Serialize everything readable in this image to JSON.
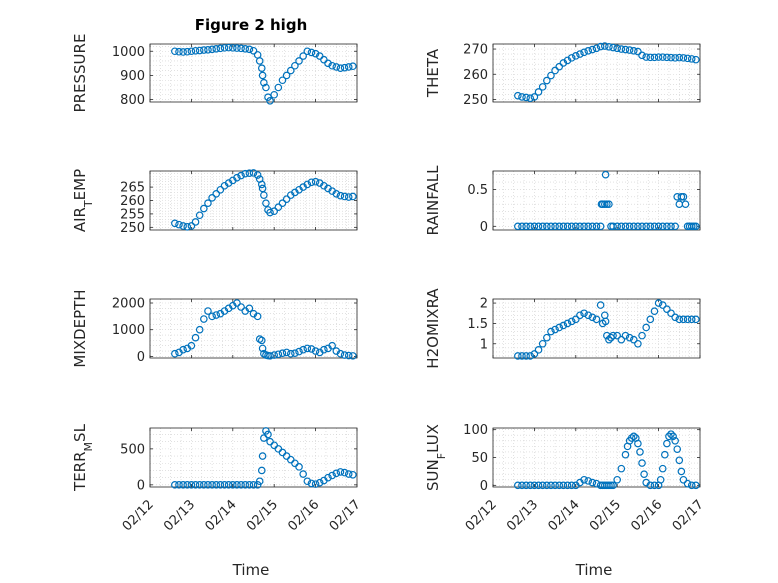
{
  "title": "Figure 2 high",
  "xlabel": "Time",
  "x_tick_labels": [
    "02/12",
    "02/13",
    "02/14",
    "02/15",
    "02/16",
    "02/17"
  ],
  "marker_color": "#0072BD",
  "chart_data": [
    {
      "type": "scatter",
      "ylabel": "PRESSURE",
      "ylim": [
        790,
        1030
      ],
      "yticks": [
        800,
        900,
        1000
      ],
      "x": [
        12.6,
        12.7,
        12.8,
        12.9,
        13.0,
        13.1,
        13.2,
        13.3,
        13.4,
        13.5,
        13.6,
        13.7,
        13.8,
        13.9,
        14.0,
        14.1,
        14.2,
        14.3,
        14.4,
        14.5,
        14.6,
        14.65,
        14.7,
        14.72,
        14.75,
        14.8,
        14.85,
        14.9,
        15.0,
        15.1,
        15.2,
        15.3,
        15.4,
        15.5,
        15.6,
        15.7,
        15.8,
        15.9,
        16.0,
        16.1,
        16.2,
        16.3,
        16.4,
        16.5,
        16.6,
        16.7,
        16.8,
        16.9
      ],
      "y": [
        1000,
        998,
        997,
        998,
        1000,
        1002,
        1003,
        1005,
        1006,
        1008,
        1010,
        1012,
        1014,
        1015,
        1014,
        1013,
        1012,
        1010,
        1008,
        1002,
        985,
        960,
        930,
        900,
        870,
        850,
        810,
        795,
        820,
        850,
        880,
        900,
        920,
        940,
        960,
        980,
        1000,
        995,
        990,
        980,
        965,
        950,
        940,
        935,
        930,
        932,
        935,
        938
      ]
    },
    {
      "type": "scatter",
      "ylabel": "THETA",
      "ylim": [
        249,
        272
      ],
      "yticks": [
        250,
        260,
        270
      ],
      "x": [
        12.6,
        12.7,
        12.8,
        12.9,
        13.0,
        13.1,
        13.2,
        13.3,
        13.4,
        13.5,
        13.6,
        13.7,
        13.8,
        13.9,
        14.0,
        14.1,
        14.2,
        14.3,
        14.4,
        14.5,
        14.6,
        14.7,
        14.8,
        14.9,
        15.0,
        15.1,
        15.2,
        15.3,
        15.4,
        15.5,
        15.6,
        15.7,
        15.8,
        15.9,
        16.0,
        16.1,
        16.2,
        16.3,
        16.4,
        16.5,
        16.6,
        16.7,
        16.8,
        16.9
      ],
      "y": [
        251.5,
        251,
        250.8,
        250.5,
        251,
        253,
        255,
        257.5,
        259.5,
        261.5,
        263,
        264.5,
        265.5,
        266.5,
        267.3,
        268,
        268.7,
        269.3,
        269.8,
        270.3,
        271,
        271.2,
        270.9,
        270.6,
        270.3,
        270,
        269.8,
        269.6,
        269.3,
        269,
        267.5,
        266.8,
        266.7,
        266.7,
        266.8,
        266.8,
        266.7,
        266.6,
        266.5,
        266.6,
        266.5,
        266.3,
        266.1,
        265.8
      ]
    },
    {
      "type": "scatter",
      "ylabel": "AIR_TEMP",
      "ylim": [
        249,
        271
      ],
      "yticks": [
        250,
        255,
        260,
        265
      ],
      "x": [
        12.6,
        12.7,
        12.8,
        12.9,
        13.0,
        13.1,
        13.2,
        13.3,
        13.4,
        13.5,
        13.6,
        13.7,
        13.8,
        13.9,
        14.0,
        14.1,
        14.2,
        14.3,
        14.4,
        14.5,
        14.6,
        14.65,
        14.7,
        14.72,
        14.75,
        14.8,
        14.85,
        14.9,
        15.0,
        15.1,
        15.2,
        15.3,
        15.4,
        15.5,
        15.6,
        15.7,
        15.8,
        15.9,
        16.0,
        16.1,
        16.2,
        16.3,
        16.4,
        16.5,
        16.6,
        16.7,
        16.8,
        16.9
      ],
      "y": [
        251.5,
        251,
        250.5,
        250.2,
        250.5,
        252,
        254.5,
        257,
        259,
        261,
        262.5,
        264,
        265.5,
        266.5,
        267.5,
        268.5,
        269.3,
        270,
        270.2,
        270.3,
        269.5,
        268,
        266,
        264.5,
        262,
        259,
        256.5,
        255.5,
        256,
        257.5,
        259,
        260.5,
        262,
        263,
        264,
        265,
        266,
        266.8,
        267,
        266.5,
        265.5,
        264.5,
        263.5,
        262.5,
        261.8,
        261.5,
        261.3,
        261.5
      ]
    },
    {
      "type": "scatter",
      "ylabel": "RAINFALL",
      "ylim": [
        -0.05,
        0.75
      ],
      "yticks": [
        0,
        0.5
      ],
      "x": [
        12.6,
        12.7,
        12.8,
        12.9,
        13.0,
        13.1,
        13.2,
        13.3,
        13.4,
        13.5,
        13.6,
        13.7,
        13.8,
        13.9,
        14.0,
        14.1,
        14.2,
        14.3,
        14.4,
        14.5,
        14.6,
        14.62,
        14.65,
        14.7,
        14.72,
        14.75,
        14.8,
        14.85,
        14.9,
        15.0,
        15.1,
        15.2,
        15.3,
        15.4,
        15.5,
        15.6,
        15.7,
        15.8,
        15.9,
        16.0,
        16.1,
        16.2,
        16.3,
        16.4,
        16.45,
        16.5,
        16.55,
        16.6,
        16.65,
        16.7,
        16.75,
        16.8,
        16.85,
        16.9
      ],
      "y": [
        0,
        0,
        0,
        0,
        0,
        0,
        0,
        0,
        0,
        0,
        0,
        0,
        0,
        0,
        0,
        0,
        0,
        0,
        0,
        0,
        0,
        0.3,
        0.3,
        0.3,
        0.7,
        0.3,
        0.3,
        0,
        0,
        0,
        0,
        0,
        0,
        0,
        0,
        0,
        0,
        0,
        0,
        0,
        0,
        0,
        0,
        0,
        0.4,
        0.3,
        0.4,
        0.4,
        0.3,
        0,
        0,
        0,
        0,
        0
      ]
    },
    {
      "type": "scatter",
      "ylabel": "MIXDEPTH",
      "ylim": [
        -60,
        2150
      ],
      "yticks": [
        0,
        1000,
        2000
      ],
      "x": [
        12.6,
        12.7,
        12.8,
        12.9,
        13.0,
        13.1,
        13.2,
        13.3,
        13.4,
        13.5,
        13.6,
        13.7,
        13.8,
        13.9,
        14.0,
        14.1,
        14.2,
        14.3,
        14.4,
        14.5,
        14.6,
        14.65,
        14.7,
        14.72,
        14.75,
        14.8,
        14.85,
        14.9,
        15.0,
        15.1,
        15.2,
        15.3,
        15.4,
        15.5,
        15.6,
        15.7,
        15.8,
        15.9,
        16.0,
        16.1,
        16.2,
        16.3,
        16.4,
        16.5,
        16.6,
        16.7,
        16.8,
        16.9
      ],
      "y": [
        100,
        150,
        250,
        300,
        400,
        700,
        1000,
        1400,
        1700,
        1500,
        1550,
        1600,
        1700,
        1800,
        1900,
        2000,
        1850,
        1700,
        1800,
        1600,
        1500,
        650,
        600,
        300,
        100,
        50,
        30,
        20,
        50,
        80,
        120,
        150,
        100,
        120,
        180,
        250,
        300,
        280,
        200,
        150,
        250,
        300,
        400,
        200,
        100,
        50,
        30,
        20
      ]
    },
    {
      "type": "scatter",
      "ylabel": "H2OMIXRA",
      "ylim": [
        0.65,
        2.1
      ],
      "yticks": [
        1,
        1.5,
        2
      ],
      "x": [
        12.6,
        12.7,
        12.8,
        12.9,
        13.0,
        13.1,
        13.2,
        13.3,
        13.4,
        13.5,
        13.6,
        13.7,
        13.8,
        13.9,
        14.0,
        14.1,
        14.2,
        14.3,
        14.4,
        14.5,
        14.6,
        14.65,
        14.7,
        14.72,
        14.75,
        14.8,
        14.85,
        14.9,
        15.0,
        15.1,
        15.2,
        15.3,
        15.4,
        15.5,
        15.6,
        15.7,
        15.8,
        15.9,
        16.0,
        16.1,
        16.2,
        16.3,
        16.4,
        16.5,
        16.6,
        16.7,
        16.8,
        16.9
      ],
      "y": [
        0.7,
        0.7,
        0.7,
        0.7,
        0.75,
        0.85,
        1.0,
        1.15,
        1.3,
        1.35,
        1.4,
        1.45,
        1.5,
        1.55,
        1.6,
        1.7,
        1.75,
        1.7,
        1.65,
        1.6,
        1.95,
        1.5,
        1.7,
        1.55,
        1.2,
        1.1,
        1.15,
        1.2,
        1.2,
        1.1,
        1.2,
        1.15,
        1.1,
        1.0,
        1.2,
        1.4,
        1.6,
        1.8,
        2.0,
        1.95,
        1.85,
        1.75,
        1.65,
        1.6,
        1.6,
        1.6,
        1.6,
        1.6
      ]
    },
    {
      "type": "scatter",
      "ylabel": "TERR_MSL",
      "ylim": [
        -30,
        790
      ],
      "yticks": [
        0,
        500
      ],
      "x": [
        12.6,
        12.7,
        12.8,
        12.9,
        13.0,
        13.1,
        13.2,
        13.3,
        13.4,
        13.5,
        13.6,
        13.7,
        13.8,
        13.9,
        14.0,
        14.1,
        14.2,
        14.3,
        14.4,
        14.5,
        14.6,
        14.65,
        14.7,
        14.72,
        14.75,
        14.8,
        14.85,
        14.9,
        15.0,
        15.1,
        15.2,
        15.3,
        15.4,
        15.5,
        15.6,
        15.7,
        15.8,
        15.9,
        16.0,
        16.1,
        16.2,
        16.3,
        16.4,
        16.5,
        16.6,
        16.7,
        16.8,
        16.9
      ],
      "y": [
        0,
        0,
        0,
        0,
        0,
        0,
        0,
        0,
        0,
        0,
        0,
        0,
        0,
        0,
        0,
        0,
        0,
        0,
        0,
        0,
        0,
        50,
        200,
        400,
        650,
        750,
        700,
        600,
        550,
        500,
        450,
        400,
        350,
        300,
        250,
        150,
        50,
        20,
        10,
        30,
        60,
        100,
        130,
        160,
        180,
        170,
        150,
        140
      ]
    },
    {
      "type": "scatter",
      "ylabel": "SUN_FLUX",
      "ylim": [
        -3,
        103
      ],
      "yticks": [
        0,
        50,
        100
      ],
      "x": [
        12.6,
        12.7,
        12.8,
        12.9,
        13.0,
        13.1,
        13.2,
        13.3,
        13.4,
        13.5,
        13.6,
        13.7,
        13.8,
        13.9,
        14.0,
        14.1,
        14.2,
        14.3,
        14.4,
        14.5,
        14.6,
        14.65,
        14.7,
        14.75,
        14.8,
        14.85,
        14.9,
        15.0,
        15.1,
        15.2,
        15.25,
        15.3,
        15.35,
        15.4,
        15.45,
        15.5,
        15.55,
        15.6,
        15.65,
        15.7,
        15.8,
        15.9,
        16.0,
        16.05,
        16.1,
        16.15,
        16.2,
        16.25,
        16.3,
        16.35,
        16.4,
        16.45,
        16.5,
        16.55,
        16.6,
        16.7,
        16.8,
        16.9
      ],
      "y": [
        0,
        0,
        0,
        0,
        0,
        0,
        0,
        0,
        0,
        0,
        0,
        0,
        0,
        0,
        0,
        5,
        10,
        8,
        5,
        3,
        0,
        0,
        0,
        0,
        0,
        0,
        0,
        10,
        30,
        55,
        70,
        80,
        85,
        88,
        85,
        75,
        60,
        40,
        20,
        5,
        0,
        0,
        0,
        10,
        30,
        55,
        75,
        88,
        92,
        88,
        80,
        65,
        45,
        25,
        10,
        3,
        0,
        0
      ]
    }
  ]
}
